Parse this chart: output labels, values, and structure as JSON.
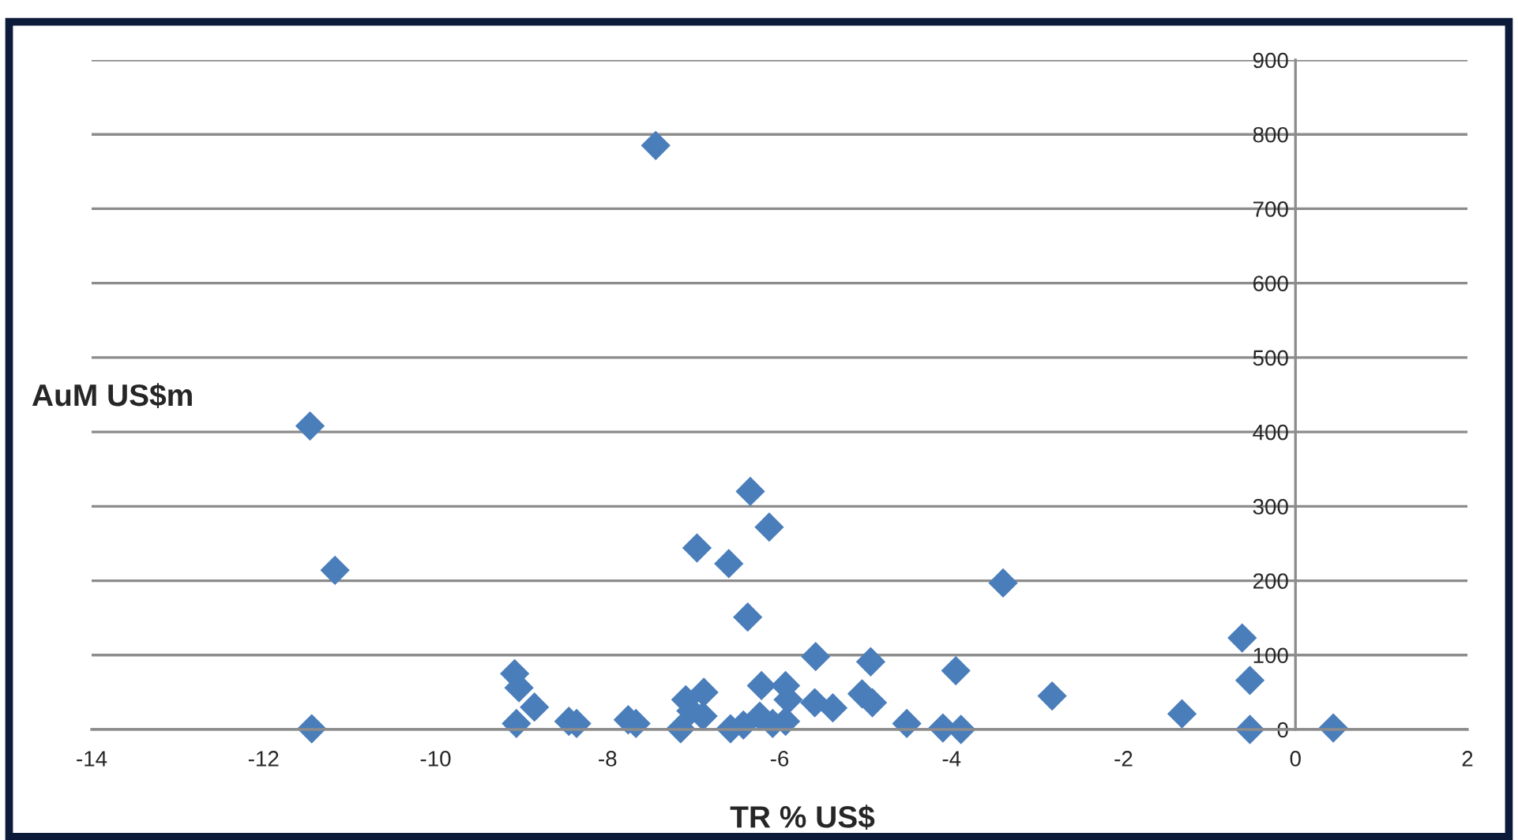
{
  "chart_data": {
    "type": "scatter",
    "xlabel": "TR % US$",
    "ylabel": "AuM US$m",
    "x": [
      -7.44,
      -11.46,
      -11.17,
      -6.34,
      -6.12,
      -6.96,
      -6.59,
      -6.37,
      -3.4,
      -0.62,
      -0.53,
      0.44,
      -0.53,
      -3.95,
      -2.83,
      -1.32,
      -4.52,
      -4.1,
      -3.89,
      -9.08,
      -9.03,
      -8.85,
      -9.06,
      -8.45,
      -8.36,
      -7.76,
      -7.67,
      -7.09,
      -6.88,
      -6.89,
      -7.15,
      -7.03,
      -6.57,
      -6.42,
      -6.23,
      -6.21,
      -5.93,
      -5.9,
      -6.08,
      -5.93,
      -5.58,
      -5.59,
      -5.38,
      -4.94,
      -5.04,
      -4.92,
      -11.44
    ],
    "values": [
      785,
      408,
      214,
      320,
      272,
      244,
      223,
      151,
      197,
      123,
      66,
      2,
      0,
      79,
      45,
      21,
      8,
      2,
      0,
      75,
      56,
      30,
      8,
      11,
      8,
      13,
      8,
      40,
      50,
      18,
      1,
      25,
      1,
      6,
      18,
      59,
      59,
      40,
      8,
      11,
      98,
      36,
      29,
      91,
      48,
      36,
      1
    ],
    "color": "#4a7ebb",
    "marker": "diamond",
    "grid": "y",
    "xlim": [
      -14,
      2
    ],
    "xticks": [
      -14,
      -12,
      -10,
      -8,
      -6,
      -4,
      -2,
      0,
      2
    ],
    "ylim": [
      0,
      900
    ],
    "yticks": [
      0,
      100,
      200,
      300,
      400,
      500,
      600,
      700,
      800,
      900
    ]
  }
}
